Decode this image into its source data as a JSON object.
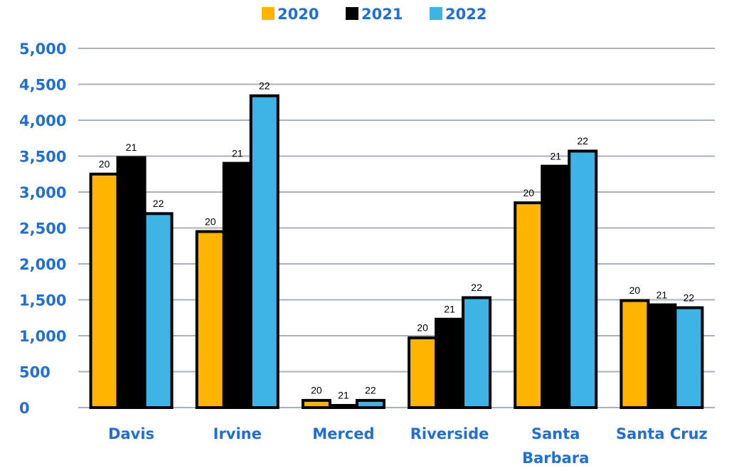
{
  "chart_data": {
    "type": "bar",
    "categories": [
      "Davis",
      "Irvine",
      "Merced",
      "Riverside",
      "Santa Barbara",
      "Santa Cruz"
    ],
    "series": [
      {
        "name": "2020",
        "label": "20",
        "color": "#ffb400",
        "values": [
          3250,
          2450,
          100,
          970,
          2850,
          1490
        ]
      },
      {
        "name": "2021",
        "label": "21",
        "color": "#000000",
        "values": [
          3480,
          3400,
          30,
          1230,
          3360,
          1430
        ]
      },
      {
        "name": "2022",
        "label": "22",
        "color": "#3eb3e6",
        "values": [
          2700,
          4340,
          100,
          1530,
          3570,
          1390
        ]
      }
    ],
    "ylim": [
      0,
      5000
    ],
    "yticks": [
      0,
      500,
      {
        "value": 1000,
        "label": "1,000"
      },
      {
        "value": 1500,
        "label": "1,500"
      },
      {
        "value": 2000,
        "label": "2,000"
      },
      {
        "value": 2500,
        "label": "2,500"
      },
      {
        "value": 3000,
        "label": "3,000"
      },
      {
        "value": 3500,
        "label": "3,500"
      },
      {
        "value": 4000,
        "label": "4,000"
      },
      {
        "value": 4500,
        "label": "4,500"
      },
      {
        "value": 5000,
        "label": "5,000"
      }
    ],
    "grid": true,
    "legend": "top"
  }
}
